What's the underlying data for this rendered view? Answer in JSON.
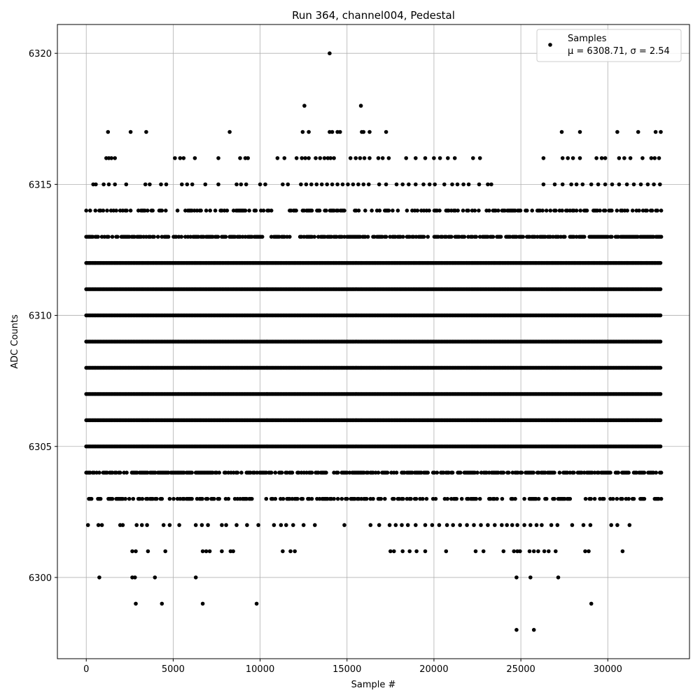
{
  "chart_data": {
    "type": "scatter",
    "title": "Run 364, channel004, Pedestal",
    "xlabel": "Sample #",
    "ylabel": "ADC Counts",
    "xlim": [
      -1660,
      34700
    ],
    "ylim": [
      6296.9,
      6321.1
    ],
    "xticks": [
      0,
      5000,
      10000,
      15000,
      20000,
      25000,
      30000
    ],
    "yticks": [
      6300,
      6305,
      6310,
      6315,
      6320
    ],
    "grid": true,
    "legend": {
      "position": "top-right",
      "entries": [
        {
          "name": "Samples",
          "stats": "μ = 6308.71, σ = 2.54"
        }
      ]
    },
    "series": [
      {
        "name": "Samples",
        "color": "#000000",
        "marker": "circle",
        "x_range": [
          0,
          33100
        ],
        "dense_levels": [
          6303,
          6304,
          6305,
          6306,
          6307,
          6308,
          6309,
          6310,
          6311,
          6312,
          6313,
          6314
        ],
        "continuous_levels": [
          6305,
          6306,
          6307,
          6308,
          6309,
          6310,
          6311,
          6312
        ],
        "sparse_points": [
          [
            14000,
            6320
          ],
          [
            12550,
            6318
          ],
          [
            15800,
            6318
          ],
          [
            1250,
            6317
          ],
          [
            2550,
            6317
          ],
          [
            3450,
            6317
          ],
          [
            8250,
            6317
          ],
          [
            12450,
            6317
          ],
          [
            12800,
            6317
          ],
          [
            14000,
            6317
          ],
          [
            14150,
            6317
          ],
          [
            14450,
            6317
          ],
          [
            14600,
            6317
          ],
          [
            15850,
            6317
          ],
          [
            15950,
            6317
          ],
          [
            16300,
            6317
          ],
          [
            17250,
            6317
          ],
          [
            27350,
            6317
          ],
          [
            28400,
            6317
          ],
          [
            30550,
            6317
          ],
          [
            31750,
            6317
          ],
          [
            32750,
            6317
          ],
          [
            33050,
            6317
          ],
          [
            1150,
            6316
          ],
          [
            1300,
            6316
          ],
          [
            1450,
            6316
          ],
          [
            1650,
            6316
          ],
          [
            5100,
            6316
          ],
          [
            5400,
            6316
          ],
          [
            5600,
            6316
          ],
          [
            6250,
            6316
          ],
          [
            7600,
            6316
          ],
          [
            8850,
            6316
          ],
          [
            9150,
            6316
          ],
          [
            9300,
            6316
          ],
          [
            11000,
            6316
          ],
          [
            11400,
            6316
          ],
          [
            12100,
            6316
          ],
          [
            12400,
            6316
          ],
          [
            12600,
            6316
          ],
          [
            12800,
            6316
          ],
          [
            13200,
            6316
          ],
          [
            13450,
            6316
          ],
          [
            13700,
            6316
          ],
          [
            13900,
            6316
          ],
          [
            14050,
            6316
          ],
          [
            14250,
            6316
          ],
          [
            15200,
            6316
          ],
          [
            15500,
            6316
          ],
          [
            15750,
            6316
          ],
          [
            16000,
            6316
          ],
          [
            16300,
            6316
          ],
          [
            16800,
            6316
          ],
          [
            17050,
            6316
          ],
          [
            17400,
            6316
          ],
          [
            18400,
            6316
          ],
          [
            18950,
            6316
          ],
          [
            19500,
            6316
          ],
          [
            20000,
            6316
          ],
          [
            20350,
            6316
          ],
          [
            20800,
            6316
          ],
          [
            21200,
            6316
          ],
          [
            22250,
            6316
          ],
          [
            22650,
            6316
          ],
          [
            26300,
            6316
          ],
          [
            27400,
            6316
          ],
          [
            27700,
            6316
          ],
          [
            28000,
            6316
          ],
          [
            28400,
            6316
          ],
          [
            29350,
            6316
          ],
          [
            29650,
            6316
          ],
          [
            29850,
            6316
          ],
          [
            30650,
            6316
          ],
          [
            30950,
            6316
          ],
          [
            31300,
            6316
          ],
          [
            32000,
            6316
          ],
          [
            32500,
            6316
          ],
          [
            32700,
            6316
          ],
          [
            32950,
            6316
          ],
          [
            400,
            6315
          ],
          [
            550,
            6315
          ],
          [
            1000,
            6315
          ],
          [
            1300,
            6315
          ],
          [
            1650,
            6315
          ],
          [
            2300,
            6315
          ],
          [
            3400,
            6315
          ],
          [
            3650,
            6315
          ],
          [
            4300,
            6315
          ],
          [
            4600,
            6315
          ],
          [
            5500,
            6315
          ],
          [
            5800,
            6315
          ],
          [
            6100,
            6315
          ],
          [
            6850,
            6315
          ],
          [
            7600,
            6315
          ],
          [
            8650,
            6315
          ],
          [
            8900,
            6315
          ],
          [
            9200,
            6315
          ],
          [
            10000,
            6315
          ],
          [
            10300,
            6315
          ],
          [
            11300,
            6315
          ],
          [
            11600,
            6315
          ],
          [
            12350,
            6315
          ],
          [
            12650,
            6315
          ],
          [
            12950,
            6315
          ],
          [
            13250,
            6315
          ],
          [
            13550,
            6315
          ],
          [
            13850,
            6315
          ],
          [
            14150,
            6315
          ],
          [
            14450,
            6315
          ],
          [
            14750,
            6315
          ],
          [
            15050,
            6315
          ],
          [
            15350,
            6315
          ],
          [
            15650,
            6315
          ],
          [
            15950,
            6315
          ],
          [
            16250,
            6315
          ],
          [
            16850,
            6315
          ],
          [
            17250,
            6315
          ],
          [
            17850,
            6315
          ],
          [
            18200,
            6315
          ],
          [
            18550,
            6315
          ],
          [
            18950,
            6315
          ],
          [
            19400,
            6315
          ],
          [
            19750,
            6315
          ],
          [
            20050,
            6315
          ],
          [
            20600,
            6315
          ],
          [
            21050,
            6315
          ],
          [
            21350,
            6315
          ],
          [
            21700,
            6315
          ],
          [
            22000,
            6315
          ],
          [
            22600,
            6315
          ],
          [
            23100,
            6315
          ],
          [
            23300,
            6315
          ],
          [
            26300,
            6315
          ],
          [
            26950,
            6315
          ],
          [
            27400,
            6315
          ],
          [
            27900,
            6315
          ],
          [
            28200,
            6315
          ],
          [
            28550,
            6315
          ],
          [
            29050,
            6315
          ],
          [
            29450,
            6315
          ],
          [
            29850,
            6315
          ],
          [
            30250,
            6315
          ],
          [
            30650,
            6315
          ],
          [
            31100,
            6315
          ],
          [
            31500,
            6315
          ],
          [
            31900,
            6315
          ],
          [
            32300,
            6315
          ],
          [
            32650,
            6315
          ],
          [
            33000,
            6315
          ],
          [
            100,
            6302
          ],
          [
            700,
            6302
          ],
          [
            900,
            6302
          ],
          [
            1950,
            6302
          ],
          [
            2100,
            6302
          ],
          [
            2900,
            6302
          ],
          [
            3200,
            6302
          ],
          [
            3500,
            6302
          ],
          [
            4450,
            6302
          ],
          [
            4800,
            6302
          ],
          [
            5350,
            6302
          ],
          [
            6300,
            6302
          ],
          [
            6650,
            6302
          ],
          [
            7000,
            6302
          ],
          [
            7800,
            6302
          ],
          [
            8050,
            6302
          ],
          [
            8650,
            6302
          ],
          [
            9250,
            6302
          ],
          [
            9900,
            6302
          ],
          [
            10800,
            6302
          ],
          [
            11200,
            6302
          ],
          [
            11500,
            6302
          ],
          [
            11900,
            6302
          ],
          [
            12500,
            6302
          ],
          [
            13150,
            6302
          ],
          [
            14850,
            6302
          ],
          [
            16350,
            6302
          ],
          [
            16850,
            6302
          ],
          [
            17450,
            6302
          ],
          [
            17800,
            6302
          ],
          [
            18150,
            6302
          ],
          [
            18500,
            6302
          ],
          [
            18950,
            6302
          ],
          [
            19500,
            6302
          ],
          [
            19900,
            6302
          ],
          [
            20300,
            6302
          ],
          [
            20750,
            6302
          ],
          [
            21100,
            6302
          ],
          [
            21500,
            6302
          ],
          [
            21900,
            6302
          ],
          [
            22300,
            6302
          ],
          [
            22700,
            6302
          ],
          [
            23100,
            6302
          ],
          [
            23500,
            6302
          ],
          [
            23900,
            6302
          ],
          [
            24200,
            6302
          ],
          [
            24500,
            6302
          ],
          [
            24800,
            6302
          ],
          [
            25200,
            6302
          ],
          [
            25550,
            6302
          ],
          [
            25900,
            6302
          ],
          [
            26200,
            6302
          ],
          [
            26750,
            6302
          ],
          [
            27100,
            6302
          ],
          [
            27950,
            6302
          ],
          [
            28600,
            6302
          ],
          [
            29000,
            6302
          ],
          [
            30200,
            6302
          ],
          [
            30550,
            6302
          ],
          [
            31250,
            6302
          ],
          [
            2650,
            6301
          ],
          [
            2850,
            6301
          ],
          [
            3550,
            6301
          ],
          [
            4550,
            6301
          ],
          [
            6700,
            6301
          ],
          [
            6900,
            6301
          ],
          [
            7100,
            6301
          ],
          [
            7800,
            6301
          ],
          [
            8300,
            6301
          ],
          [
            8450,
            6301
          ],
          [
            11300,
            6301
          ],
          [
            11750,
            6301
          ],
          [
            12000,
            6301
          ],
          [
            17500,
            6301
          ],
          [
            17700,
            6301
          ],
          [
            18200,
            6301
          ],
          [
            18600,
            6301
          ],
          [
            19000,
            6301
          ],
          [
            19500,
            6301
          ],
          [
            20700,
            6301
          ],
          [
            22400,
            6301
          ],
          [
            22850,
            6301
          ],
          [
            24000,
            6301
          ],
          [
            24600,
            6301
          ],
          [
            24800,
            6301
          ],
          [
            24950,
            6301
          ],
          [
            25500,
            6301
          ],
          [
            25750,
            6301
          ],
          [
            26000,
            6301
          ],
          [
            26350,
            6301
          ],
          [
            26600,
            6301
          ],
          [
            27000,
            6301
          ],
          [
            28700,
            6301
          ],
          [
            28900,
            6301
          ],
          [
            30850,
            6301
          ],
          [
            750,
            6300
          ],
          [
            2650,
            6300
          ],
          [
            2800,
            6300
          ],
          [
            3950,
            6300
          ],
          [
            6300,
            6300
          ],
          [
            24750,
            6300
          ],
          [
            25550,
            6300
          ],
          [
            27150,
            6300
          ],
          [
            2850,
            6299
          ],
          [
            4350,
            6299
          ],
          [
            6700,
            6299
          ],
          [
            9800,
            6299
          ],
          [
            29050,
            6299
          ],
          [
            24750,
            6298
          ],
          [
            25750,
            6298
          ]
        ]
      }
    ]
  }
}
